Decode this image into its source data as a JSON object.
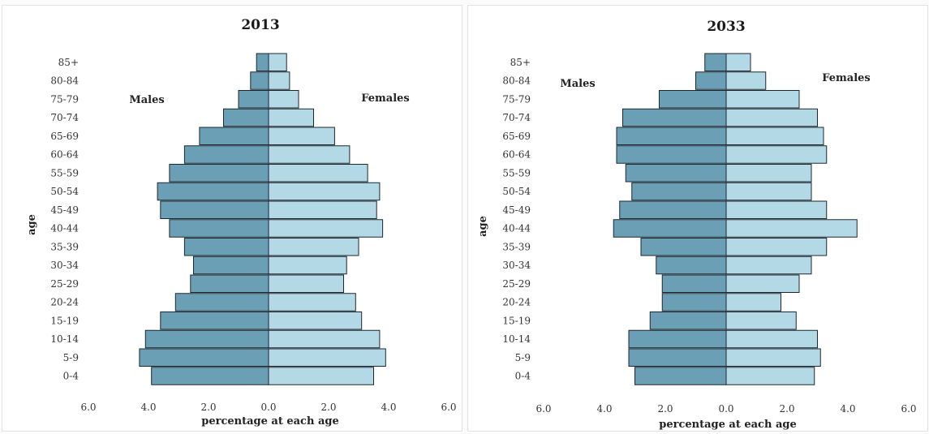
{
  "colors": {
    "male": "#6b9fb5",
    "female": "#b3d8e6",
    "edge": "#1c2830"
  },
  "chart_data": [
    {
      "type": "bar",
      "title": "2013",
      "xlabel": "percentage at each age",
      "ylabel": "age",
      "xlim": [
        -6,
        6
      ],
      "x_ticks": [
        "6.0",
        "4.0",
        "2.0",
        "0.0",
        "2.0",
        "4.0",
        "6.0"
      ],
      "categories": [
        "0-4",
        "5-9",
        "10-14",
        "15-19",
        "20-24",
        "25-29",
        "30-34",
        "35-39",
        "40-44",
        "45-49",
        "50-54",
        "55-59",
        "60-64",
        "65-69",
        "70-74",
        "75-79",
        "80-84",
        "85+"
      ],
      "series": [
        {
          "name": "Males",
          "values": [
            3.9,
            4.3,
            4.1,
            3.6,
            3.1,
            2.6,
            2.5,
            2.8,
            3.3,
            3.6,
            3.7,
            3.3,
            2.8,
            2.3,
            1.5,
            1.0,
            0.6,
            0.4
          ]
        },
        {
          "name": "Females",
          "values": [
            3.5,
            3.9,
            3.7,
            3.1,
            2.9,
            2.5,
            2.6,
            3.0,
            3.8,
            3.6,
            3.7,
            3.3,
            2.7,
            2.2,
            1.5,
            1.0,
            0.7,
            0.6
          ]
        }
      ]
    },
    {
      "type": "bar",
      "title": "2033",
      "xlabel": "percentage at each age",
      "ylabel": "age",
      "xlim": [
        -6,
        6
      ],
      "x_ticks": [
        "6.0",
        "4.0",
        "2.0",
        "0.0",
        "2.0",
        "4.0",
        "6.0"
      ],
      "categories": [
        "0-4",
        "5-9",
        "10-14",
        "15-19",
        "20-24",
        "25-29",
        "30-34",
        "35-39",
        "40-44",
        "45-49",
        "50-54",
        "55-59",
        "60-64",
        "65-69",
        "70-74",
        "75-79",
        "80-84",
        "85+"
      ],
      "series": [
        {
          "name": "Males",
          "values": [
            3.0,
            3.2,
            3.2,
            2.5,
            2.1,
            2.1,
            2.3,
            2.8,
            3.7,
            3.5,
            3.1,
            3.3,
            3.6,
            3.6,
            3.4,
            2.2,
            1.0,
            0.7
          ]
        },
        {
          "name": "Females",
          "values": [
            2.9,
            3.1,
            3.0,
            2.3,
            1.8,
            2.4,
            2.8,
            3.3,
            4.3,
            3.3,
            2.8,
            2.8,
            3.3,
            3.2,
            3.0,
            2.4,
            1.3,
            0.8
          ]
        }
      ]
    }
  ]
}
